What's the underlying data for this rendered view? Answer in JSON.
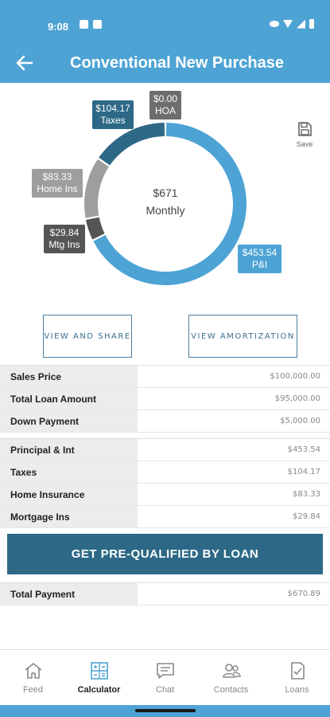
{
  "status": {
    "time": "9:08"
  },
  "header": {
    "title": "Conventional New Purchase"
  },
  "summary": {
    "amount": "$671",
    "label": "Monthly"
  },
  "chart_data": {
    "type": "pie",
    "categories": [
      "P&I",
      "Mtg Ins",
      "Home Ins",
      "Taxes",
      "HOA"
    ],
    "values": [
      453.54,
      29.84,
      83.33,
      104.17,
      0.0
    ],
    "labels": [
      "$453.54\nP&I",
      "$29.84\nMtg Ins",
      "$83.33\nHome Ins",
      "$104.17\nTaxes",
      "$0.00\nHOA"
    ],
    "colors": [
      "#4da3d4",
      "#555555",
      "#9e9e9e",
      "#2d6987",
      "#6d6d6d"
    ],
    "center": "$671 Monthly"
  },
  "tags": {
    "taxes": {
      "amount": "$104.17",
      "name": "Taxes"
    },
    "hoa": {
      "amount": "$0.00",
      "name": "HOA"
    },
    "home_ins": {
      "amount": "$83.33",
      "name": "Home Ins"
    },
    "mtg_ins": {
      "amount": "$29.84",
      "name": "Mtg Ins"
    },
    "pi": {
      "amount": "$453.54",
      "name": "P&I"
    }
  },
  "save": {
    "label": "Save"
  },
  "actions": {
    "share": "VIEW AND SHARE",
    "amortization": "VIEW AMORTIZATION"
  },
  "loan_table": [
    {
      "label": "Sales Price",
      "value": "$100,000.00"
    },
    {
      "label": "Total Loan Amount",
      "value": "$95,000.00"
    },
    {
      "label": "Down Payment",
      "value": "$5,000.00"
    }
  ],
  "payment_table": [
    {
      "label": "Principal & Int",
      "value": "$453.54"
    },
    {
      "label": "Taxes",
      "value": "$104.17"
    },
    {
      "label": "Home Insurance",
      "value": "$83.33"
    },
    {
      "label": "Mortgage Ins",
      "value": "$29.84"
    }
  ],
  "cta": {
    "label": "GET PRE-QUALIFIED BY LOAN"
  },
  "total": {
    "label": "Total Payment",
    "value": "$670.89"
  },
  "tabs": [
    {
      "label": "Feed",
      "icon": "home-icon"
    },
    {
      "label": "Calculator",
      "icon": "calculator-icon"
    },
    {
      "label": "Chat",
      "icon": "chat-icon"
    },
    {
      "label": "Contacts",
      "icon": "contacts-icon"
    },
    {
      "label": "Loans",
      "icon": "document-check-icon"
    }
  ]
}
